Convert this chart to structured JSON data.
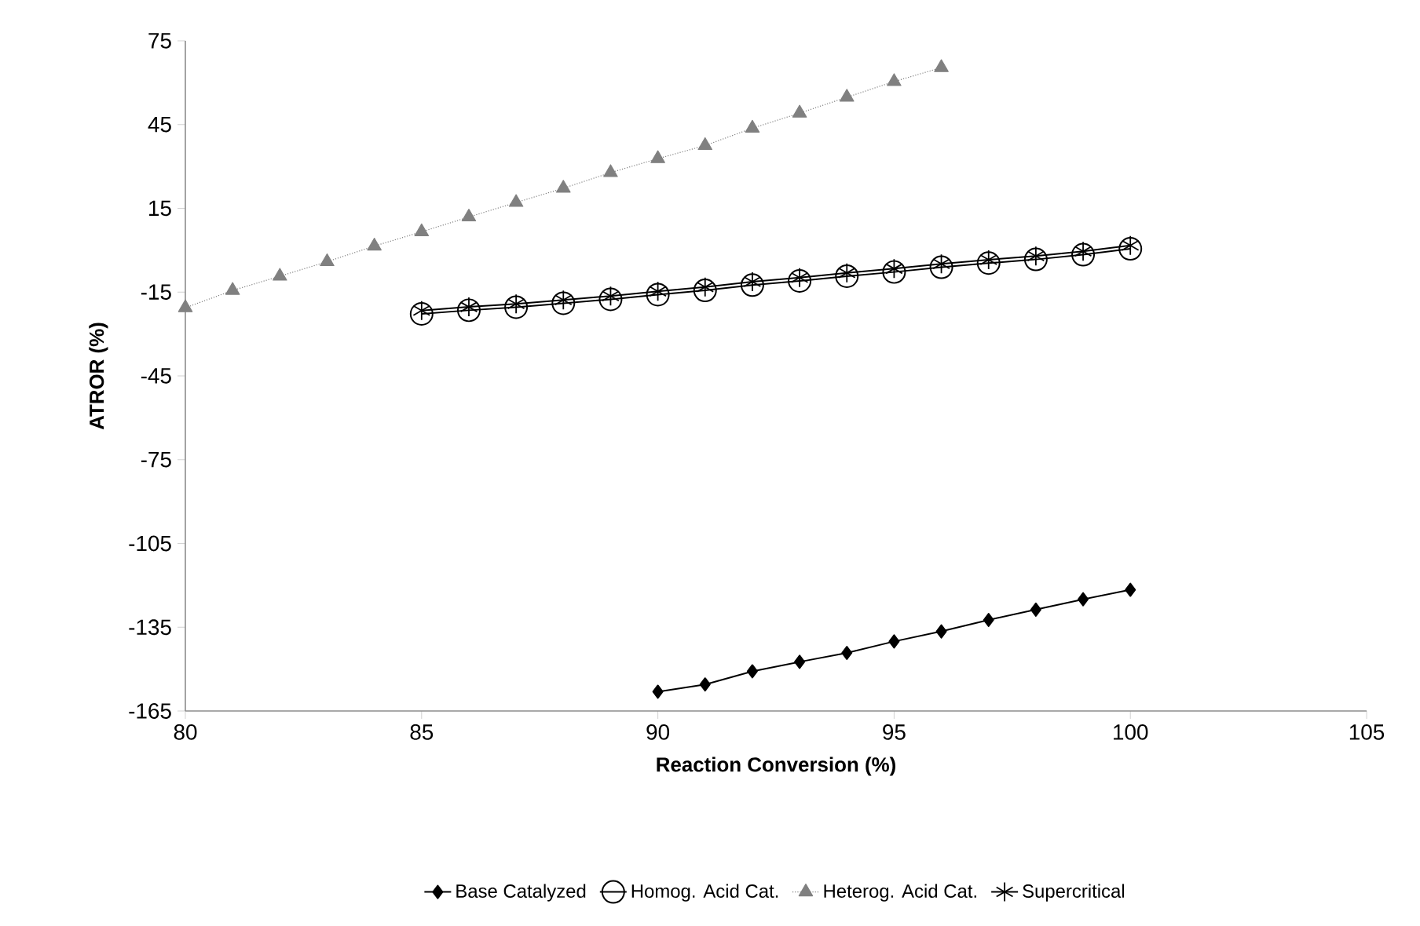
{
  "chart_data": {
    "type": "line",
    "xlabel": "Reaction Conversion (%)",
    "ylabel": "ATROR (%)",
    "xlim": [
      80,
      105
    ],
    "xticks": [
      80,
      85,
      90,
      95,
      100,
      105
    ],
    "ylim": [
      -165,
      75
    ],
    "yticks": [
      -165,
      -135,
      -105,
      -75,
      -45,
      -15,
      15,
      45,
      75
    ],
    "grid": false,
    "legend": "bottom",
    "series": [
      {
        "name": "Base Catalyzed",
        "color": "#000000",
        "marker": "diamond",
        "line_style": "solid",
        "x": [
          90,
          91,
          92,
          93,
          94,
          95,
          96,
          97,
          98,
          99,
          100
        ],
        "values": [
          -158.1,
          -155.5,
          -150.8,
          -147.4,
          -144.2,
          -140.1,
          -136.5,
          -132.4,
          -128.7,
          -125.0,
          -121.6
        ]
      },
      {
        "name": "Homog. Acid Cat.",
        "color": "#000000",
        "marker": "circle",
        "line_style": "solid",
        "x": [
          85,
          86,
          87,
          88,
          89,
          90,
          91,
          92,
          93,
          94,
          95,
          96,
          97,
          98,
          99,
          100
        ],
        "values": [
          -22.8,
          -21.5,
          -20.4,
          -19.0,
          -17.6,
          -15.9,
          -14.4,
          -12.5,
          -11.0,
          -9.3,
          -7.8,
          -6.1,
          -4.6,
          -3.3,
          -1.6,
          0.5
        ]
      },
      {
        "name": "Heterog. Acid Cat.",
        "color": "#808080",
        "marker": "triangle",
        "line_style": "dotted",
        "x": [
          80,
          81,
          82,
          83,
          84,
          85,
          86,
          87,
          88,
          89,
          90,
          91,
          92,
          93,
          94,
          95,
          96
        ],
        "values": [
          -20.6,
          -14.4,
          -9.3,
          -4.1,
          1.5,
          6.6,
          11.9,
          17.1,
          22.2,
          27.8,
          32.8,
          37.5,
          43.7,
          49.1,
          54.8,
          60.4,
          65.4
        ]
      },
      {
        "name": "Supercritical",
        "color": "#000000",
        "marker": "cross",
        "line_style": "solid",
        "x": [
          85,
          86,
          87,
          88,
          89,
          90,
          91,
          92,
          93,
          94,
          95,
          96,
          97,
          98,
          99,
          100
        ],
        "values": [
          -21.6,
          -20.3,
          -19.2,
          -17.8,
          -16.4,
          -14.7,
          -13.2,
          -11.3,
          -9.8,
          -8.1,
          -6.6,
          -4.9,
          -3.4,
          -2.1,
          -0.4,
          1.7
        ]
      }
    ]
  }
}
